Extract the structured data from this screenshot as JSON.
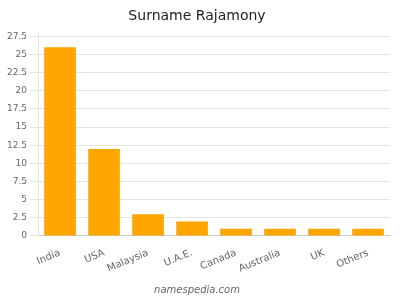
{
  "chart_data": {
    "type": "bar",
    "title": "Surname Rajamony",
    "categories": [
      "India",
      "USA",
      "Malaysia",
      "U.A.E.",
      "Canada",
      "Australia",
      "UK",
      "Others"
    ],
    "values": [
      26,
      12,
      3,
      2,
      1,
      1,
      1,
      1
    ],
    "color": "#FFA500",
    "ylim": [
      0,
      28
    ],
    "yticks": [
      0,
      2.5,
      5,
      7.5,
      10,
      12.5,
      15,
      17.5,
      20,
      22.5,
      25,
      27.5
    ],
    "grid": true,
    "annotations": [
      "namespedia.com"
    ]
  }
}
